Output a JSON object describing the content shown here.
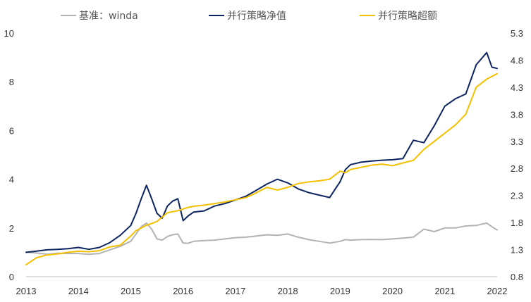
{
  "chart_data": {
    "type": "line",
    "x_ticks": [
      "2013",
      "2014",
      "2015",
      "2016",
      "2017",
      "2018",
      "2019",
      "2020",
      "2021",
      "2022"
    ],
    "x_range": [
      2013,
      2022
    ],
    "y_left": {
      "range": [
        0,
        10
      ],
      "ticks": [
        "0",
        "2",
        "4",
        "6",
        "8",
        "10"
      ]
    },
    "y_right": {
      "range": [
        0.8,
        5.3
      ],
      "ticks": [
        "0.8",
        "1.3",
        "1.8",
        "2.3",
        "2.8",
        "3.3",
        "3.8",
        "4.3",
        "4.8",
        "5.3"
      ]
    },
    "grid": false,
    "legend_position": "top",
    "series": [
      {
        "name": "基准：winda",
        "axis": "left",
        "color": "#b3b3b3",
        "x": [
          2013.0,
          2013.2,
          2013.4,
          2013.6,
          2013.8,
          2014.0,
          2014.2,
          2014.4,
          2014.6,
          2014.8,
          2015.0,
          2015.1,
          2015.2,
          2015.3,
          2015.4,
          2015.5,
          2015.6,
          2015.7,
          2015.8,
          2015.9,
          2016.0,
          2016.1,
          2016.2,
          2016.4,
          2016.6,
          2016.8,
          2017.0,
          2017.2,
          2017.4,
          2017.6,
          2017.8,
          2018.0,
          2018.2,
          2018.4,
          2018.6,
          2018.8,
          2019.0,
          2019.1,
          2019.2,
          2019.4,
          2019.6,
          2019.8,
          2020.0,
          2020.2,
          2020.4,
          2020.6,
          2020.8,
          2021.0,
          2021.2,
          2021.4,
          2021.6,
          2021.8,
          2021.9,
          2022.0
        ],
        "y": [
          1.0,
          0.97,
          0.92,
          0.96,
          0.95,
          0.95,
          0.92,
          0.95,
          1.1,
          1.25,
          1.45,
          1.75,
          2.05,
          2.2,
          1.95,
          1.55,
          1.5,
          1.65,
          1.72,
          1.75,
          1.38,
          1.37,
          1.45,
          1.48,
          1.5,
          1.55,
          1.6,
          1.62,
          1.67,
          1.72,
          1.7,
          1.75,
          1.62,
          1.52,
          1.45,
          1.38,
          1.45,
          1.52,
          1.5,
          1.52,
          1.53,
          1.52,
          1.55,
          1.58,
          1.62,
          1.95,
          1.85,
          2.0,
          2.0,
          2.08,
          2.1,
          2.2,
          2.05,
          1.92
        ]
      },
      {
        "name": "并行策略净值",
        "axis": "left",
        "color": "#0c2461",
        "x": [
          2013.0,
          2013.2,
          2013.4,
          2013.6,
          2013.8,
          2014.0,
          2014.2,
          2014.4,
          2014.6,
          2014.8,
          2015.0,
          2015.1,
          2015.2,
          2015.3,
          2015.4,
          2015.5,
          2015.6,
          2015.7,
          2015.8,
          2015.9,
          2016.0,
          2016.1,
          2016.2,
          2016.4,
          2016.6,
          2016.8,
          2017.0,
          2017.2,
          2017.4,
          2017.6,
          2017.8,
          2018.0,
          2018.2,
          2018.4,
          2018.6,
          2018.8,
          2019.0,
          2019.1,
          2019.2,
          2019.4,
          2019.6,
          2019.8,
          2020.0,
          2020.2,
          2020.4,
          2020.6,
          2020.8,
          2021.0,
          2021.2,
          2021.4,
          2021.6,
          2021.8,
          2021.9,
          2022.0
        ],
        "y": [
          1.0,
          1.05,
          1.1,
          1.12,
          1.15,
          1.2,
          1.12,
          1.2,
          1.4,
          1.7,
          2.1,
          2.6,
          3.2,
          3.75,
          3.2,
          2.6,
          2.4,
          2.9,
          3.1,
          3.2,
          2.3,
          2.5,
          2.65,
          2.7,
          2.9,
          3.0,
          3.15,
          3.3,
          3.55,
          3.8,
          4.0,
          3.85,
          3.6,
          3.45,
          3.35,
          3.25,
          3.9,
          4.4,
          4.6,
          4.7,
          4.75,
          4.78,
          4.8,
          4.85,
          5.6,
          5.5,
          6.2,
          7.0,
          7.3,
          7.5,
          8.7,
          9.2,
          8.6,
          8.55
        ]
      },
      {
        "name": "并行策略超额",
        "axis": "right",
        "color": "#f5c000",
        "x": [
          2013.0,
          2013.2,
          2013.4,
          2013.6,
          2013.8,
          2014.0,
          2014.2,
          2014.4,
          2014.6,
          2014.8,
          2015.0,
          2015.1,
          2015.2,
          2015.3,
          2015.4,
          2015.5,
          2015.6,
          2015.7,
          2015.8,
          2015.9,
          2016.0,
          2016.1,
          2016.2,
          2016.4,
          2016.6,
          2016.8,
          2017.0,
          2017.2,
          2017.4,
          2017.6,
          2017.8,
          2018.0,
          2018.2,
          2018.4,
          2018.6,
          2018.8,
          2019.0,
          2019.1,
          2019.2,
          2019.4,
          2019.6,
          2019.8,
          2020.0,
          2020.2,
          2020.4,
          2020.6,
          2020.8,
          2021.0,
          2021.2,
          2021.4,
          2021.6,
          2021.8,
          2021.9,
          2022.0
        ],
        "y": [
          1.02,
          1.15,
          1.2,
          1.22,
          1.25,
          1.27,
          1.26,
          1.28,
          1.35,
          1.38,
          1.55,
          1.65,
          1.7,
          1.75,
          1.78,
          1.82,
          1.9,
          1.98,
          2.0,
          2.02,
          2.05,
          2.08,
          2.1,
          2.12,
          2.15,
          2.18,
          2.22,
          2.26,
          2.35,
          2.45,
          2.4,
          2.45,
          2.52,
          2.55,
          2.57,
          2.6,
          2.75,
          2.72,
          2.78,
          2.82,
          2.86,
          2.88,
          2.85,
          2.9,
          2.95,
          3.15,
          3.3,
          3.45,
          3.6,
          3.8,
          4.3,
          4.45,
          4.5,
          4.55
        ]
      }
    ]
  }
}
